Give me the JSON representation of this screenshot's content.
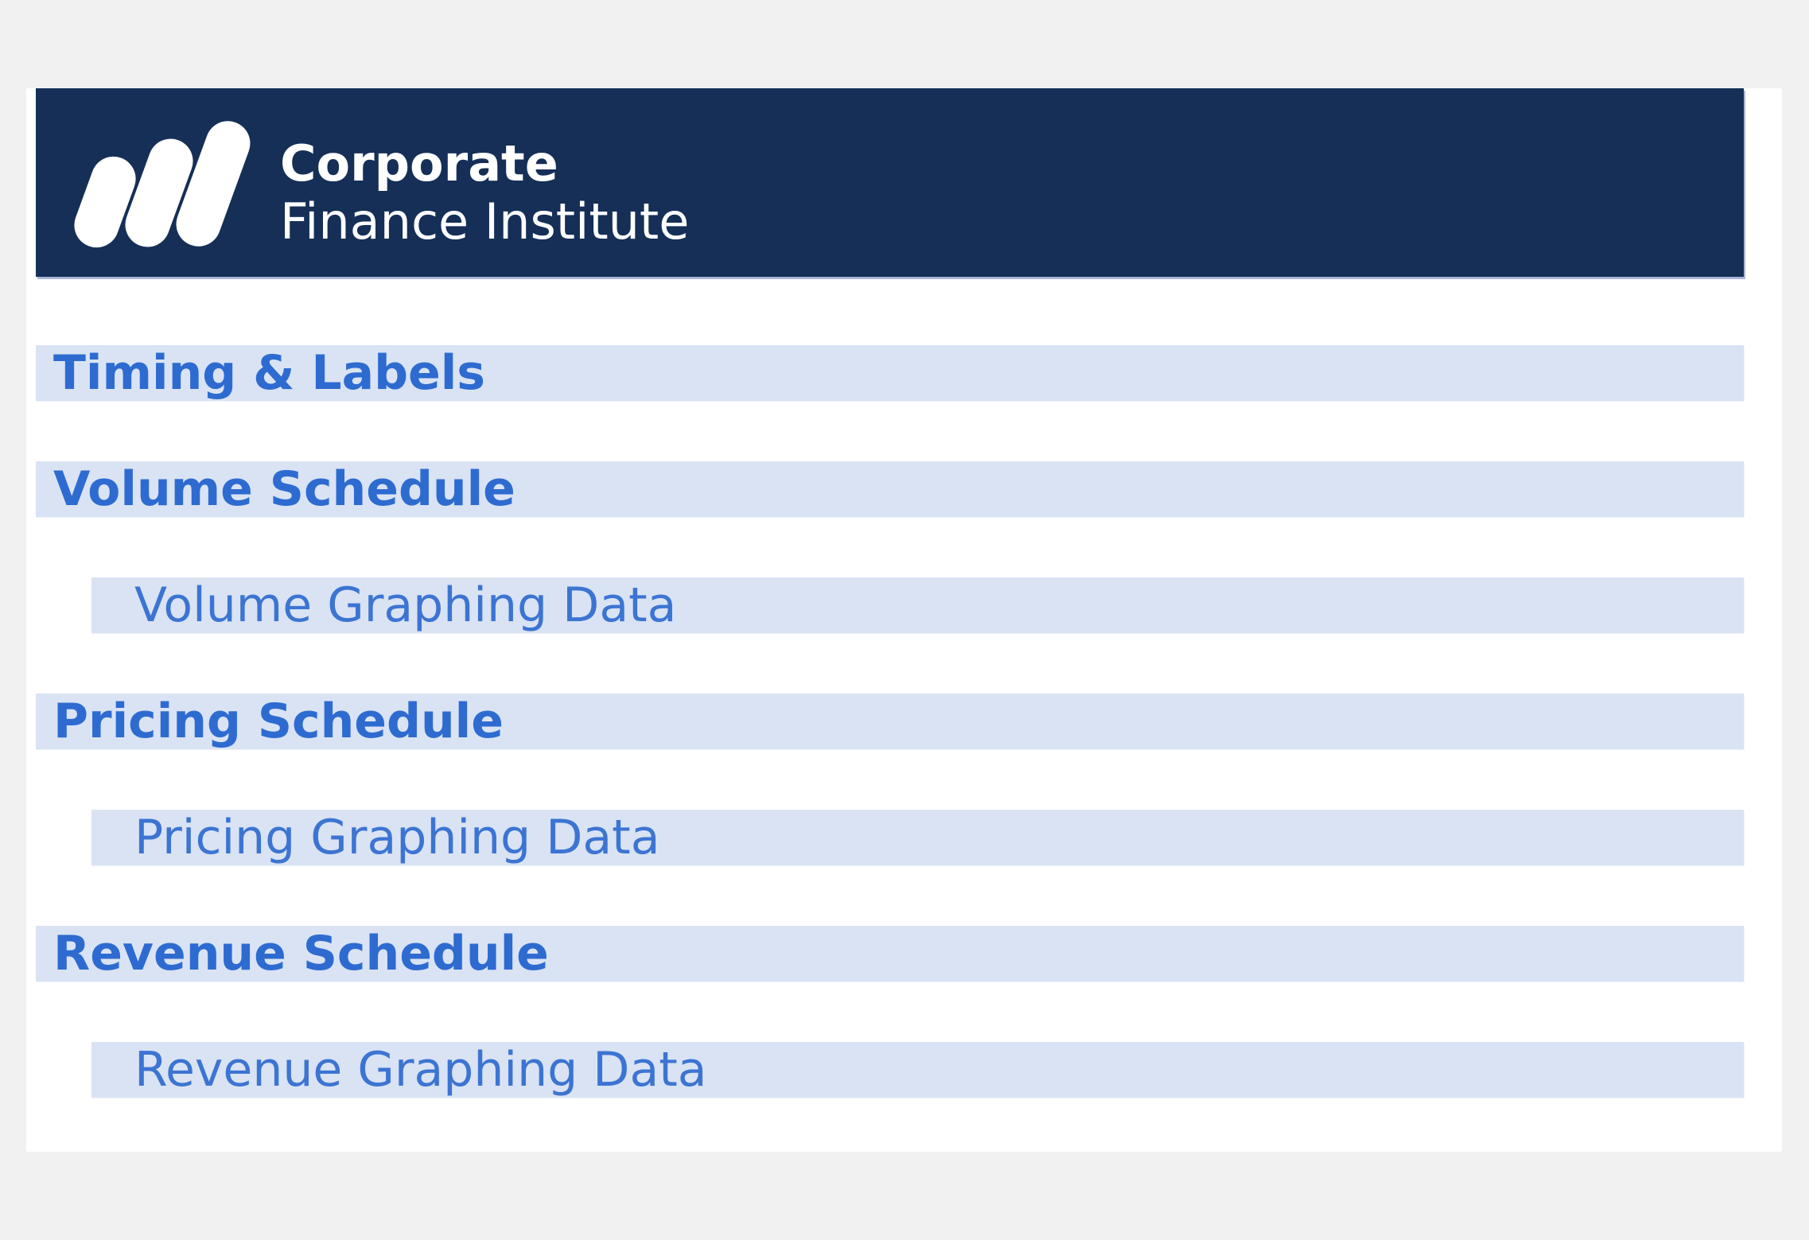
{
  "colors": {
    "background": "#f1f1f2",
    "surface": "#ffffff",
    "header_navy": "#152f57",
    "band_blue": "#d9e3f4",
    "heading_blue": "#2e6bd0",
    "subitem_blue": "#3c74d2",
    "logo_white": "#ffffff"
  },
  "header": {
    "brand_line1": "Corporate",
    "brand_line2": "Finance Institute",
    "logo": "cfi-three-bars-logo"
  },
  "nav": {
    "items": [
      {
        "label": "Timing & Labels",
        "level": 1
      },
      {
        "label": "Volume Schedule",
        "level": 1
      },
      {
        "label": "Volume Graphing Data",
        "level": 2
      },
      {
        "label": "Pricing Schedule",
        "level": 1
      },
      {
        "label": "Pricing Graphing Data",
        "level": 2
      },
      {
        "label": "Revenue Schedule",
        "level": 1
      },
      {
        "label": "Revenue Graphing Data",
        "level": 2
      }
    ]
  }
}
